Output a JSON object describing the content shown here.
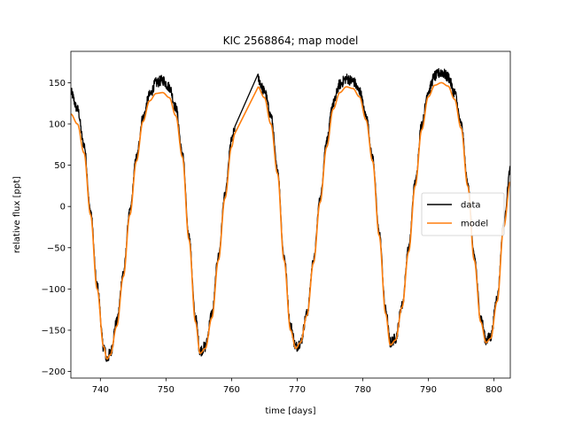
{
  "chart_data": {
    "type": "line",
    "title": "KIC 2568864; map model",
    "xlabel": "time [days]",
    "ylabel": "relative flux [ppt]",
    "xlim": [
      735.5,
      802.5
    ],
    "ylim": [
      -208,
      188
    ],
    "x_ticks": [
      740,
      750,
      760,
      770,
      780,
      790,
      800
    ],
    "y_ticks": [
      -200,
      -150,
      -100,
      -50,
      0,
      50,
      100,
      150
    ],
    "grid": false,
    "legend": {
      "position": "center-right",
      "entries": [
        "data",
        "model"
      ]
    },
    "gap": [
      760.5,
      764.0
    ],
    "series": [
      {
        "name": "data",
        "color": "#000000",
        "points": [
          [
            735.5,
            138
          ],
          [
            736.5,
            118
          ],
          [
            737.5,
            75
          ],
          [
            738.5,
            -5
          ],
          [
            739.5,
            -95
          ],
          [
            740.5,
            -170
          ],
          [
            741.0,
            -185
          ],
          [
            741.5,
            -178
          ],
          [
            742.5,
            -140
          ],
          [
            743.5,
            -80
          ],
          [
            744.5,
            -5
          ],
          [
            745.5,
            60
          ],
          [
            746.5,
            108
          ],
          [
            747.5,
            135
          ],
          [
            748.5,
            150
          ],
          [
            749.5,
            153
          ],
          [
            750.5,
            145
          ],
          [
            751.5,
            120
          ],
          [
            752.5,
            65
          ],
          [
            753.5,
            -35
          ],
          [
            754.5,
            -135
          ],
          [
            755.2,
            -175
          ],
          [
            756.0,
            -170
          ],
          [
            757.0,
            -130
          ],
          [
            758.0,
            -60
          ],
          [
            759.0,
            15
          ],
          [
            760.0,
            80
          ],
          [
            760.5,
            95
          ],
          [
            764.0,
            155
          ],
          [
            765.0,
            140
          ],
          [
            766.0,
            110
          ],
          [
            767.0,
            45
          ],
          [
            768.0,
            -60
          ],
          [
            769.0,
            -145
          ],
          [
            769.8,
            -170
          ],
          [
            770.5,
            -165
          ],
          [
            771.5,
            -130
          ],
          [
            772.5,
            -65
          ],
          [
            773.5,
            10
          ],
          [
            774.5,
            80
          ],
          [
            775.5,
            125
          ],
          [
            776.5,
            148
          ],
          [
            777.5,
            155
          ],
          [
            778.5,
            152
          ],
          [
            779.5,
            140
          ],
          [
            780.5,
            110
          ],
          [
            781.5,
            60
          ],
          [
            782.5,
            -30
          ],
          [
            783.5,
            -125
          ],
          [
            784.2,
            -165
          ],
          [
            785.0,
            -160
          ],
          [
            786.0,
            -120
          ],
          [
            787.0,
            -50
          ],
          [
            788.0,
            30
          ],
          [
            789.0,
            100
          ],
          [
            790.0,
            140
          ],
          [
            791.0,
            158
          ],
          [
            792.0,
            163
          ],
          [
            793.0,
            157
          ],
          [
            794.0,
            138
          ],
          [
            795.0,
            100
          ],
          [
            796.0,
            30
          ],
          [
            797.0,
            -60
          ],
          [
            798.0,
            -135
          ],
          [
            798.8,
            -162
          ],
          [
            799.5,
            -158
          ],
          [
            800.5,
            -110
          ],
          [
            801.5,
            -20
          ],
          [
            802.5,
            45
          ]
        ]
      },
      {
        "name": "model",
        "color": "#ff7f0e",
        "points": [
          [
            735.5,
            112
          ],
          [
            736.5,
            100
          ],
          [
            737.5,
            65
          ],
          [
            738.5,
            -10
          ],
          [
            739.5,
            -100
          ],
          [
            740.5,
            -170
          ],
          [
            741.0,
            -185
          ],
          [
            741.5,
            -180
          ],
          [
            742.5,
            -145
          ],
          [
            743.5,
            -85
          ],
          [
            744.5,
            -10
          ],
          [
            745.5,
            55
          ],
          [
            746.5,
            103
          ],
          [
            747.5,
            128
          ],
          [
            748.5,
            137
          ],
          [
            749.5,
            138
          ],
          [
            750.5,
            132
          ],
          [
            751.5,
            110
          ],
          [
            752.5,
            60
          ],
          [
            753.5,
            -40
          ],
          [
            754.5,
            -140
          ],
          [
            755.2,
            -178
          ],
          [
            756.0,
            -172
          ],
          [
            757.0,
            -135
          ],
          [
            758.0,
            -65
          ],
          [
            759.0,
            10
          ],
          [
            760.0,
            72
          ],
          [
            760.5,
            88
          ],
          [
            764.0,
            145
          ],
          [
            765.0,
            132
          ],
          [
            766.0,
            100
          ],
          [
            767.0,
            40
          ],
          [
            768.0,
            -65
          ],
          [
            769.0,
            -150
          ],
          [
            769.8,
            -172
          ],
          [
            770.5,
            -165
          ],
          [
            771.5,
            -132
          ],
          [
            772.5,
            -68
          ],
          [
            773.5,
            5
          ],
          [
            774.5,
            72
          ],
          [
            775.5,
            118
          ],
          [
            776.5,
            138
          ],
          [
            777.5,
            145
          ],
          [
            778.5,
            143
          ],
          [
            779.5,
            133
          ],
          [
            780.5,
            105
          ],
          [
            781.5,
            55
          ],
          [
            782.5,
            -35
          ],
          [
            783.5,
            -130
          ],
          [
            784.2,
            -168
          ],
          [
            785.0,
            -162
          ],
          [
            786.0,
            -122
          ],
          [
            787.0,
            -55
          ],
          [
            788.0,
            25
          ],
          [
            789.0,
            93
          ],
          [
            790.0,
            133
          ],
          [
            791.0,
            147
          ],
          [
            792.0,
            150
          ],
          [
            793.0,
            146
          ],
          [
            794.0,
            130
          ],
          [
            795.0,
            95
          ],
          [
            796.0,
            25
          ],
          [
            797.0,
            -65
          ],
          [
            798.0,
            -140
          ],
          [
            798.8,
            -165
          ],
          [
            799.5,
            -160
          ],
          [
            800.5,
            -115
          ],
          [
            801.5,
            -25
          ],
          [
            802.5,
            30
          ]
        ]
      }
    ]
  }
}
